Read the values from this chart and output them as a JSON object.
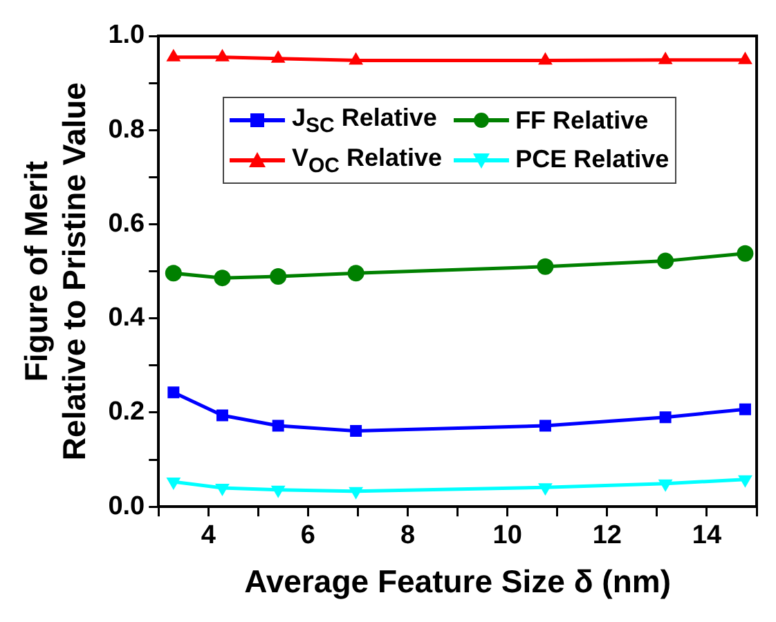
{
  "chart_data": {
    "type": "line",
    "xlabel": "Average Feature Size δ (nm)",
    "ylabel": "Figure of Merit\nRelative to Pristine Value",
    "xlim": [
      3,
      15
    ],
    "xticks": [
      {
        "value": 3,
        "label": null
      },
      4,
      {
        "value": 5,
        "label": null
      },
      6,
      {
        "value": 7,
        "label": null
      },
      8,
      {
        "value": 9,
        "label": null
      },
      10,
      {
        "value": 11,
        "label": null
      },
      12,
      {
        "value": 13,
        "label": null
      },
      14,
      {
        "value": 15,
        "label": null
      }
    ],
    "ylim": [
      0,
      1
    ],
    "yticks": [
      {
        "value": 0,
        "label": "0.0"
      },
      {
        "value": 0.1,
        "label": null
      },
      0.2,
      {
        "value": 0.3,
        "label": null
      },
      0.4,
      {
        "value": 0.5,
        "label": null
      },
      0.6,
      {
        "value": 0.7,
        "label": null
      },
      0.8,
      {
        "value": 0.9,
        "label": null
      },
      {
        "value": 1,
        "label": "1.0"
      }
    ],
    "grid": false,
    "legend": "top",
    "line_style": "solid",
    "x": [
      3.3,
      4.28,
      5.4,
      6.96,
      10.76,
      13.17,
      14.77
    ],
    "series": [
      {
        "name": "J$_{SC}$ Relative",
        "color": "#0000ff",
        "marker": "square",
        "values": [
          0.243,
          0.194,
          0.172,
          0.161,
          0.172,
          0.19,
          0.207
        ]
      },
      {
        "name": "FF Relative",
        "color": "#008000",
        "marker": "circle",
        "values": [
          0.496,
          0.486,
          0.489,
          0.496,
          0.51,
          0.522,
          0.538
        ]
      },
      {
        "name": "V$_{OC}$ Relative",
        "color": "#ff0000",
        "marker": "triangle",
        "values": [
          0.955,
          0.955,
          0.952,
          0.948,
          0.948,
          0.949,
          0.949
        ]
      },
      {
        "name": "PCE Relative",
        "color": "#00ffff",
        "marker": "triangle-down",
        "values": [
          0.053,
          0.04,
          0.036,
          0.033,
          0.041,
          0.049,
          0.058
        ]
      }
    ]
  }
}
